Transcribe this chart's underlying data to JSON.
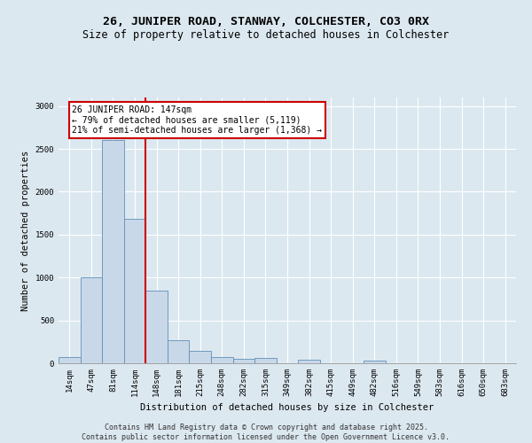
{
  "title_line1": "26, JUNIPER ROAD, STANWAY, COLCHESTER, CO3 0RX",
  "title_line2": "Size of property relative to detached houses in Colchester",
  "xlabel": "Distribution of detached houses by size in Colchester",
  "ylabel": "Number of detached properties",
  "categories": [
    "14sqm",
    "47sqm",
    "81sqm",
    "114sqm",
    "148sqm",
    "181sqm",
    "215sqm",
    "248sqm",
    "282sqm",
    "315sqm",
    "349sqm",
    "382sqm",
    "415sqm",
    "449sqm",
    "482sqm",
    "516sqm",
    "549sqm",
    "583sqm",
    "616sqm",
    "650sqm",
    "683sqm"
  ],
  "values": [
    75,
    1000,
    2600,
    1680,
    850,
    265,
    145,
    70,
    55,
    60,
    0,
    45,
    0,
    0,
    30,
    0,
    0,
    0,
    0,
    0,
    0
  ],
  "bar_color": "#c8d8e8",
  "bar_edge_color": "#6090b8",
  "vline_x": 3.5,
  "vline_color": "#cc0000",
  "annotation_text": "26 JUNIPER ROAD: 147sqm\n← 79% of detached houses are smaller (5,119)\n21% of semi-detached houses are larger (1,368) →",
  "annotation_box_facecolor": "#ffffff",
  "annotation_box_edgecolor": "#cc0000",
  "ylim": [
    0,
    3100
  ],
  "yticks": [
    0,
    500,
    1000,
    1500,
    2000,
    2500,
    3000
  ],
  "footer_line1": "Contains HM Land Registry data © Crown copyright and database right 2025.",
  "footer_line2": "Contains public sector information licensed under the Open Government Licence v3.0.",
  "bg_color": "#dce8f0",
  "plot_bg_color": "#dce8f0",
  "grid_color": "#ffffff",
  "title1_fontsize": 9.5,
  "title2_fontsize": 8.5,
  "tick_fontsize": 6.5,
  "ylabel_fontsize": 7.5,
  "xlabel_fontsize": 7.5,
  "annot_fontsize": 7.0,
  "footer_fontsize": 6.0
}
